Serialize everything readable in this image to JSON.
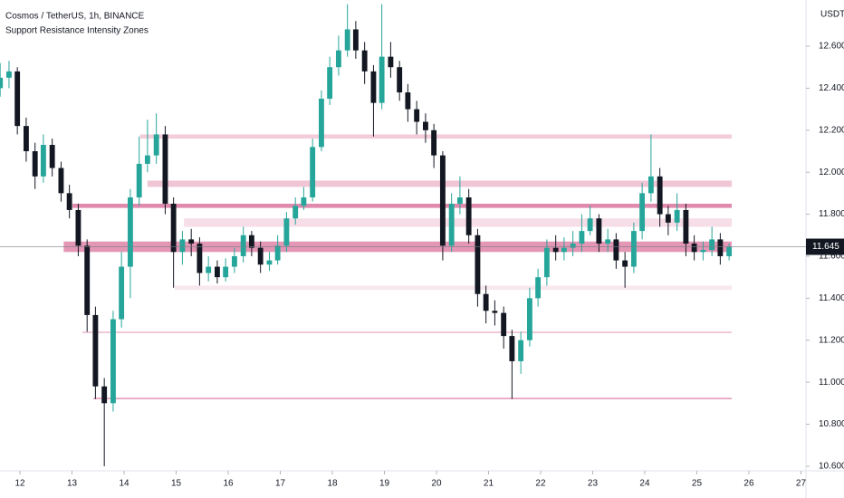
{
  "chart_data": {
    "type": "candlestick",
    "title": "Cosmos / TetherUS, 1h, BINANCE",
    "subtitle": "Support Resistance Intensity Zones",
    "y_unit": "USDT",
    "up_color": "#26a69a",
    "down_color": "#131722",
    "xlim": [
      11.617,
      27.096
    ],
    "ylim": [
      10.578,
      12.82
    ],
    "xticks": [
      12,
      13,
      14,
      15,
      16,
      17,
      18,
      19,
      20,
      21,
      22,
      23,
      24,
      25,
      26,
      27
    ],
    "yticks": [
      {
        "value": 10.6,
        "label": "10.600"
      },
      {
        "value": 10.8,
        "label": "10.800"
      },
      {
        "value": 11.0,
        "label": "11.000"
      },
      {
        "value": 11.2,
        "label": "11.200"
      },
      {
        "value": 11.4,
        "label": "11.400"
      },
      {
        "value": 11.6,
        "label": "11.600"
      },
      {
        "value": 11.8,
        "label": "11.800"
      },
      {
        "value": 12.0,
        "label": "12.000"
      },
      {
        "value": 12.2,
        "label": "12.200"
      },
      {
        "value": 12.4,
        "label": "12.400"
      },
      {
        "value": 12.6,
        "label": "12.600"
      }
    ],
    "last_price": 11.645,
    "x": [
      11.62,
      11.79,
      11.95,
      12.12,
      12.29,
      12.45,
      12.62,
      12.79,
      12.95,
      13.12,
      13.29,
      13.45,
      13.62,
      13.79,
      13.95,
      14.12,
      14.29,
      14.45,
      14.62,
      14.79,
      14.95,
      15.12,
      15.29,
      15.45,
      15.62,
      15.79,
      15.95,
      16.12,
      16.29,
      16.45,
      16.62,
      16.79,
      16.95,
      17.12,
      17.29,
      17.45,
      17.62,
      17.79,
      17.95,
      18.12,
      18.29,
      18.45,
      18.62,
      18.79,
      18.95,
      19.12,
      19.29,
      19.45,
      19.62,
      19.79,
      19.95,
      20.12,
      20.29,
      20.45,
      20.62,
      20.79,
      20.95,
      21.12,
      21.29,
      21.45,
      21.62,
      21.79,
      21.95,
      22.12,
      22.29,
      22.45,
      22.62,
      22.79,
      22.95,
      23.12,
      23.29,
      23.45,
      23.62,
      23.79,
      23.95,
      24.12,
      24.29,
      24.45,
      24.62,
      24.79,
      24.95,
      25.12,
      25.29,
      25.45,
      25.62
    ],
    "open": [
      12.4,
      12.45,
      12.48,
      12.22,
      12.1,
      11.98,
      12.13,
      12.02,
      11.9,
      11.82,
      11.65,
      11.32,
      10.98,
      10.9,
      11.3,
      11.55,
      11.88,
      12.04,
      12.08,
      12.18,
      11.85,
      11.62,
      11.68,
      11.66,
      11.52,
      11.55,
      11.5,
      11.55,
      11.6,
      11.7,
      11.64,
      11.56,
      11.58,
      11.65,
      11.78,
      11.84,
      11.88,
      12.12,
      12.35,
      12.5,
      12.58,
      12.68,
      12.58,
      12.48,
      12.33,
      12.55,
      12.5,
      12.38,
      12.3,
      12.24,
      12.2,
      12.08,
      11.65,
      11.85,
      11.88,
      11.7,
      11.42,
      11.34,
      11.33,
      11.22,
      11.1,
      11.2,
      11.4,
      11.5,
      11.64,
      11.62,
      11.64,
      11.66,
      11.72,
      11.78,
      11.66,
      11.68,
      11.58,
      11.55,
      11.72,
      11.9,
      11.98,
      11.8,
      11.76,
      11.82,
      11.66,
      11.62,
      11.63,
      11.68,
      11.6
    ],
    "high": [
      12.52,
      12.53,
      12.5,
      12.26,
      12.14,
      12.18,
      12.16,
      12.05,
      11.94,
      11.85,
      11.68,
      11.36,
      11.02,
      11.34,
      11.62,
      11.92,
      12.17,
      12.25,
      12.28,
      12.22,
      11.88,
      11.72,
      11.73,
      11.69,
      11.6,
      11.58,
      11.59,
      11.64,
      11.74,
      11.72,
      11.67,
      11.62,
      11.7,
      11.81,
      11.88,
      11.93,
      12.16,
      12.39,
      12.55,
      12.65,
      12.8,
      12.72,
      12.62,
      12.51,
      12.8,
      12.62,
      12.53,
      12.42,
      12.34,
      12.28,
      12.23,
      12.1,
      11.9,
      11.98,
      11.92,
      11.73,
      11.46,
      11.39,
      11.36,
      11.25,
      11.24,
      11.45,
      11.54,
      11.68,
      11.7,
      11.69,
      11.72,
      11.8,
      11.84,
      11.8,
      11.73,
      11.71,
      11.62,
      11.76,
      11.95,
      12.18,
      12.02,
      11.84,
      11.9,
      11.85,
      11.7,
      11.67,
      11.74,
      11.71,
      11.66
    ],
    "low": [
      12.36,
      12.4,
      12.18,
      12.05,
      11.92,
      11.95,
      11.98,
      11.86,
      11.78,
      11.6,
      11.24,
      10.92,
      10.6,
      10.86,
      11.26,
      11.4,
      11.84,
      12.0,
      12.04,
      11.8,
      11.45,
      11.56,
      11.6,
      11.46,
      11.48,
      11.47,
      11.48,
      11.52,
      11.57,
      11.6,
      11.52,
      11.53,
      11.56,
      11.62,
      11.75,
      11.82,
      11.86,
      12.1,
      12.32,
      12.46,
      12.55,
      12.54,
      12.42,
      12.17,
      12.3,
      12.45,
      12.34,
      12.24,
      12.18,
      12.14,
      12.02,
      11.58,
      11.62,
      11.8,
      11.66,
      11.36,
      11.28,
      11.27,
      11.16,
      10.92,
      11.04,
      11.17,
      11.36,
      11.46,
      11.58,
      11.58,
      11.6,
      11.62,
      11.7,
      11.62,
      11.62,
      11.54,
      11.45,
      11.52,
      11.68,
      11.86,
      11.74,
      11.7,
      11.72,
      11.6,
      11.58,
      11.58,
      11.6,
      11.56,
      11.58
    ],
    "close": [
      12.45,
      12.48,
      12.22,
      12.1,
      11.98,
      12.13,
      12.02,
      11.9,
      11.82,
      11.65,
      11.32,
      10.98,
      10.9,
      11.3,
      11.55,
      11.88,
      12.04,
      12.08,
      12.18,
      11.85,
      11.62,
      11.68,
      11.66,
      11.52,
      11.55,
      11.5,
      11.55,
      11.6,
      11.7,
      11.64,
      11.56,
      11.58,
      11.65,
      11.78,
      11.84,
      11.88,
      12.12,
      12.35,
      12.5,
      12.58,
      12.68,
      12.58,
      12.48,
      12.33,
      12.55,
      12.5,
      12.38,
      12.3,
      12.24,
      12.2,
      12.08,
      11.65,
      11.85,
      11.88,
      11.7,
      11.42,
      11.34,
      11.33,
      11.22,
      11.1,
      11.2,
      11.4,
      11.5,
      11.64,
      11.62,
      11.64,
      11.66,
      11.72,
      11.78,
      11.66,
      11.68,
      11.58,
      11.55,
      11.72,
      11.9,
      11.98,
      11.8,
      11.76,
      11.82,
      11.66,
      11.62,
      11.63,
      11.68,
      11.6,
      11.645
    ],
    "zone_color": "#c2185b",
    "zones_end": 25.67,
    "zones": [
      {
        "top": 12.18,
        "bottom": 12.16,
        "start": 14.31,
        "opacity": 0.22
      },
      {
        "top": 11.96,
        "bottom": 11.93,
        "start": 14.45,
        "opacity": 0.25
      },
      {
        "top": 11.85,
        "bottom": 11.83,
        "start": 13.01,
        "opacity": 0.5
      },
      {
        "top": 11.78,
        "bottom": 11.74,
        "start": 15.15,
        "opacity": 0.15
      },
      {
        "top": 11.67,
        "bottom": 11.62,
        "start": 12.84,
        "opacity": 0.45
      },
      {
        "top": 11.46,
        "bottom": 11.44,
        "start": 14.97,
        "opacity": 0.1
      },
      {
        "top": 11.24,
        "bottom": 11.235,
        "start": 13.2,
        "opacity": 0.4
      },
      {
        "top": 10.925,
        "bottom": 10.92,
        "start": 13.41,
        "opacity": 0.6
      }
    ]
  }
}
